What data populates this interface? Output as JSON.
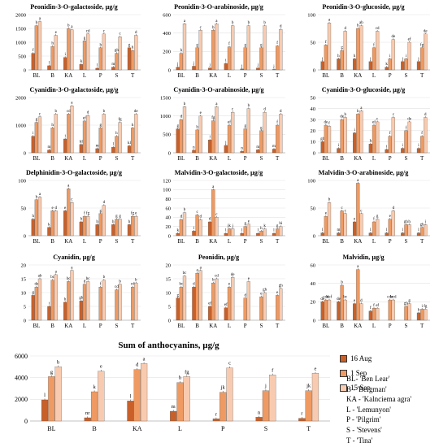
{
  "chart_data": [
    {
      "type": "bar",
      "title": "Peonidin-3-O-galactoside, µg/g",
      "categories": [
        "BL",
        "B",
        "KA",
        "L",
        "P",
        "S",
        "T"
      ],
      "ylim": [
        0,
        2000
      ],
      "yticks": [
        0,
        500,
        1000,
        1500,
        2000
      ],
      "series": [
        {
          "name": "16 Aug",
          "values": [
            600,
            150,
            450,
            200,
            60,
            100,
            800
          ]
        },
        {
          "name": "1 Sep",
          "values": [
            1600,
            850,
            1500,
            1050,
            800,
            600,
            700
          ]
        },
        {
          "name": "15 Sep",
          "values": [
            1750,
            1250,
            1450,
            1300,
            1300,
            1200,
            1250
          ]
        }
      ],
      "labels": [
        [
          "f",
          "l",
          "i",
          "k",
          "l",
          "m",
          "g"
        ],
        [
          "b",
          "h",
          "b",
          "g",
          "h",
          "gh",
          "h"
        ],
        [
          "a",
          "e",
          "a",
          "cd",
          "c",
          "c",
          "d"
        ]
      ]
    },
    {
      "type": "bar",
      "title": "Peonidin-3-O-arabinoside, µg/g",
      "categories": [
        "BL",
        "B",
        "KA",
        "L",
        "P",
        "S",
        "T"
      ],
      "ylim": [
        0,
        600
      ],
      "yticks": [
        0,
        200,
        400,
        600
      ],
      "series": [
        {
          "name": "16 Aug",
          "values": [
            30,
            40,
            20,
            70,
            10,
            20,
            5
          ]
        },
        {
          "name": "1 Sep",
          "values": [
            180,
            240,
            430,
            250,
            240,
            240,
            260
          ]
        },
        {
          "name": "15 Sep",
          "values": [
            500,
            430,
            500,
            480,
            480,
            480,
            440
          ]
        }
      ],
      "labels": [
        [
          "j",
          "j",
          "j",
          "i",
          "j",
          "j",
          "j"
        ],
        [
          "h",
          "g",
          "b",
          "f",
          "g",
          "g",
          "f"
        ],
        [
          "a",
          "c",
          "a",
          "b",
          "b",
          "b",
          "d"
        ]
      ]
    },
    {
      "type": "bar",
      "title": "Peonidin-3-O-glucoside, µg/g",
      "categories": [
        "BL",
        "B",
        "KA",
        "L",
        "P",
        "S",
        "T"
      ],
      "ylim": [
        0,
        100
      ],
      "yticks": [
        0,
        50,
        100
      ],
      "series": [
        {
          "name": "16 Aug",
          "values": [
            15,
            20,
            20,
            15,
            5,
            15,
            15
          ]
        },
        {
          "name": "1 Sep",
          "values": [
            45,
            35,
            75,
            40,
            20,
            20,
            40
          ]
        },
        {
          "name": "15 Sep",
          "values": [
            85,
            70,
            80,
            70,
            55,
            50,
            65
          ]
        }
      ],
      "labels": [
        [
          "j",
          "h",
          "h",
          "j",
          "k",
          "j",
          "j"
        ],
        [
          "f",
          "g",
          "b",
          "f",
          "i",
          "i",
          "fg"
        ],
        [
          "a",
          "d",
          "ab",
          "cd",
          "de",
          "ef",
          "de"
        ]
      ]
    },
    {
      "type": "bar",
      "title": "Cyanidin-3-O-galactoside, µg/g",
      "categories": [
        "BL",
        "B",
        "KA",
        "L",
        "P",
        "S",
        "T"
      ],
      "ylim": [
        0,
        2000
      ],
      "yticks": [
        0,
        1000,
        2000
      ],
      "series": [
        {
          "name": "16 Aug",
          "values": [
            600,
            100,
            500,
            300,
            150,
            200,
            250
          ]
        },
        {
          "name": "1 Sep",
          "values": [
            1100,
            900,
            1400,
            1150,
            900,
            600,
            900
          ]
        },
        {
          "name": "15 Sep",
          "values": [
            1300,
            1400,
            1700,
            1350,
            1400,
            1100,
            1400
          ]
        }
      ],
      "labels": [
        [
          "i",
          "m",
          "i",
          "kl",
          "m",
          "l",
          "kl"
        ],
        [
          "g",
          "h",
          "cd",
          "ef",
          "g",
          "h",
          "h"
        ],
        [
          "c",
          "b",
          "a",
          "d",
          "b",
          "fg",
          "de"
        ]
      ]
    },
    {
      "type": "bar",
      "title": "Cyanidin-3-O-arabinoside, µg/g",
      "categories": [
        "BL",
        "B",
        "KA",
        "L",
        "P",
        "S",
        "T"
      ],
      "ylim": [
        0,
        1500
      ],
      "yticks": [
        0,
        500,
        1000,
        1500
      ],
      "series": [
        {
          "name": "16 Aug",
          "values": [
            650,
            70,
            350,
            200,
            40,
            80,
            100
          ]
        },
        {
          "name": "1 Sep",
          "values": [
            900,
            620,
            870,
            750,
            650,
            600,
            750
          ]
        },
        {
          "name": "15 Sep",
          "values": [
            1250,
            1000,
            1250,
            1100,
            1200,
            1100,
            1050
          ]
        }
      ],
      "labels": [
        [
          "g",
          "n",
          "i",
          "j",
          "n",
          "m",
          "m"
        ],
        [
          "d",
          "h",
          "fg",
          "ef",
          "g",
          "g",
          "f"
        ],
        [
          "b",
          "e",
          "a",
          "c",
          "b",
          "d",
          "d"
        ]
      ]
    },
    {
      "type": "bar",
      "title": "Cyanidin-3-O-glucoside, µg/g",
      "categories": [
        "BL",
        "B",
        "KA",
        "L",
        "P",
        "S",
        "T"
      ],
      "ylim": [
        0,
        50
      ],
      "yticks": [
        0,
        10,
        20,
        30,
        40,
        50
      ],
      "series": [
        {
          "name": "16 Aug",
          "values": [
            10,
            4,
            18,
            8,
            3,
            4,
            4
          ]
        },
        {
          "name": "1 Sep",
          "values": [
            25,
            30,
            35,
            25,
            15,
            20,
            15
          ]
        },
        {
          "name": "15 Sep",
          "values": [
            24,
            32,
            38,
            28,
            32,
            28,
            32
          ]
        }
      ],
      "labels": [
        [
          "gh",
          "i",
          "i",
          "h",
          "i",
          "i",
          "i"
        ],
        [
          "de",
          "de",
          "b",
          "ef",
          "f",
          "f",
          "f"
        ],
        [
          "f",
          "b",
          "a",
          "c",
          "c",
          "de",
          "d"
        ]
      ]
    },
    {
      "type": "bar",
      "title": "Delphinidin-3-O-galactoside, µg/g",
      "categories": [
        "BL",
        "B",
        "KA",
        "L",
        "P",
        "S",
        "T"
      ],
      "ylim": [
        0,
        100
      ],
      "yticks": [
        0,
        50,
        100
      ],
      "series": [
        {
          "name": "16 Aug",
          "values": [
            30,
            15,
            45,
            25,
            20,
            20,
            20
          ]
        },
        {
          "name": "1 Sep",
          "values": [
            65,
            45,
            85,
            35,
            40,
            30,
            35
          ]
        },
        {
          "name": "15 Sep",
          "values": [
            70,
            45,
            60,
            35,
            55,
            30,
            35
          ]
        }
      ],
      "labels": [
        [
          "h",
          "k",
          "e",
          "h",
          "h",
          "h",
          "h"
        ],
        [
          "b",
          "e",
          "a",
          "f",
          "g",
          "g",
          "fg"
        ],
        [
          "a",
          "d",
          "c",
          "fg",
          "d",
          "g",
          "e"
        ]
      ]
    },
    {
      "type": "bar",
      "title": "Malvidin-3-O-galactoside, µg/g",
      "categories": [
        "BL",
        "B",
        "KA",
        "L",
        "P",
        "S",
        "T"
      ],
      "ylim": [
        0,
        120
      ],
      "yticks": [
        0,
        20,
        40,
        60,
        80,
        100,
        120
      ],
      "series": [
        {
          "name": "16 Aug",
          "values": [
            5,
            10,
            30,
            5,
            5,
            5,
            5
          ]
        },
        {
          "name": "1 Sep",
          "values": [
            35,
            45,
            100,
            15,
            20,
            10,
            15
          ]
        },
        {
          "name": "15 Sep",
          "values": [
            50,
            35,
            40,
            15,
            25,
            15,
            20
          ]
        }
      ],
      "labels": [
        [
          "k",
          "l",
          "d",
          "l",
          "l",
          "l",
          "l"
        ],
        [
          "d",
          "c",
          "a",
          "jk",
          "g",
          "h",
          "g"
        ],
        [
          "b",
          "d",
          "c",
          "j",
          "e",
          "k",
          "hi"
        ]
      ]
    },
    {
      "type": "bar",
      "title": "Malvidin-3-O-arabinoside, µg/g",
      "categories": [
        "BL",
        "B",
        "KA",
        "L",
        "P",
        "S",
        "T"
      ],
      "ylim": [
        0,
        100
      ],
      "yticks": [
        0,
        50,
        100
      ],
      "series": [
        {
          "name": "16 Aug",
          "values": [
            5,
            5,
            25,
            5,
            5,
            5,
            5
          ]
        },
        {
          "name": "1 Sep",
          "values": [
            35,
            45,
            95,
            25,
            30,
            20,
            15
          ]
        },
        {
          "name": "15 Sep",
          "values": [
            60,
            40,
            40,
            30,
            45,
            20,
            20
          ]
        }
      ],
      "labels": [
        [
          "l",
          "m",
          "e",
          "l",
          "l",
          "l",
          "l"
        ],
        [
          "e",
          "c",
          "a",
          "f",
          "e",
          "gh",
          "gh"
        ],
        [
          "b",
          "c",
          "c",
          "g",
          "d",
          "h",
          "i"
        ]
      ]
    },
    {
      "type": "bar",
      "title": "Cyanidin, µg/g",
      "categories": [
        "BL",
        "B",
        "KA",
        "L",
        "P",
        "S",
        "T"
      ],
      "ylim": [
        0,
        20
      ],
      "yticks": [
        0,
        5,
        10,
        15,
        20
      ],
      "series": [
        {
          "name": "16 Aug",
          "values": [
            9,
            5,
            6.5,
            7,
            0,
            0,
            0
          ]
        },
        {
          "name": "1 Sep",
          "values": [
            12,
            14.5,
            14,
            13,
            12,
            11,
            12
          ]
        },
        {
          "name": "15 Sep",
          "values": [
            15,
            16.5,
            18,
            14,
            14.5,
            13,
            13.5
          ]
        }
      ],
      "labels": [
        [
          "g",
          "i",
          "h",
          "gh",
          "",
          "",
          ""
        ],
        [
          "de",
          "bc",
          "bc",
          "d",
          "f",
          "cd",
          "cd"
        ],
        [
          "ab",
          "a",
          "a",
          "bc",
          "b",
          "b",
          "b"
        ]
      ]
    },
    {
      "type": "bar",
      "title": "Peonidin, µg/g",
      "categories": [
        "BL",
        "B",
        "KA",
        "L",
        "P",
        "S",
        "T"
      ],
      "ylim": [
        0,
        20
      ],
      "yticks": [
        0,
        5,
        10,
        15,
        20
      ],
      "series": [
        {
          "name": "16 Aug",
          "values": [
            8,
            12,
            5,
            4.5,
            0,
            0,
            0
          ]
        },
        {
          "name": "1 Sep",
          "values": [
            12,
            17,
            13.5,
            12,
            8,
            8.5,
            9
          ]
        },
        {
          "name": "15 Sep",
          "values": [
            16,
            18,
            15,
            15.5,
            14,
            10,
            11.5
          ]
        }
      ],
      "labels": [
        [
          "g",
          "d",
          "ef",
          "ef",
          "",
          "",
          ""
        ],
        [
          "bc",
          "a",
          "b",
          "e",
          "d",
          "e",
          "e"
        ],
        [
          "bc",
          "a",
          "cd",
          "de",
          "e",
          "gh",
          "gh"
        ]
      ]
    },
    {
      "type": "bar",
      "title": "Malvidin, µg/g",
      "categories": [
        "BL",
        "B",
        "KA",
        "L",
        "P",
        "S",
        "T"
      ],
      "ylim": [
        0,
        60
      ],
      "yticks": [
        0,
        20,
        40,
        60
      ],
      "series": [
        {
          "name": "16 Aug",
          "values": [
            20,
            20,
            18,
            10,
            0,
            0,
            8
          ]
        },
        {
          "name": "1 Sep",
          "values": [
            22,
            38,
            55,
            13,
            22,
            15,
            12
          ]
        },
        {
          "name": "15 Sep",
          "values": [
            22,
            22,
            18,
            13,
            22,
            18,
            12
          ]
        }
      ],
      "labels": [
        [
          "de",
          "de",
          "e",
          "f",
          "",
          "",
          "h"
        ],
        [
          "cde",
          "b",
          "a",
          "f",
          "cde",
          "gh",
          "i"
        ],
        [
          "def",
          "bc",
          "d",
          "ef",
          "bcd",
          "g",
          "fg"
        ]
      ]
    },
    {
      "type": "bar",
      "title": "Sum of anthocyanins, µg/g",
      "categories": [
        "BL",
        "B",
        "KA",
        "L",
        "P",
        "S",
        "T"
      ],
      "ylim": [
        0,
        6000
      ],
      "yticks": [
        0,
        2000,
        4000,
        6000
      ],
      "series": [
        {
          "name": "16 Aug",
          "values": [
            1950,
            300,
            1850,
            900,
            200,
            350,
            250
          ]
        },
        {
          "name": "1 Sep",
          "values": [
            4100,
            2700,
            4750,
            3550,
            2650,
            2800,
            2800
          ]
        },
        {
          "name": "15 Sep",
          "values": [
            5000,
            4600,
            5300,
            4100,
            4900,
            4250,
            4400
          ]
        }
      ],
      "labels": [
        [
          "l",
          "nr",
          "l",
          "m",
          "r",
          "n",
          "r"
        ],
        [
          "g",
          "k",
          "d",
          "h",
          "jk",
          "j",
          "jk"
        ],
        [
          "b",
          "e",
          "a",
          "fg",
          "c",
          "f",
          "e"
        ]
      ]
    }
  ],
  "legend": [
    {
      "label": "16 Aug",
      "color": "#c8602a"
    },
    {
      "label": "1 Sep",
      "color": "#ef9a62"
    },
    {
      "label": "15 Sep",
      "color": "#f8cbb0"
    }
  ],
  "key": [
    "BL- 'Ben Lear'",
    "B - 'Bergman'",
    "KA - 'Kalnciema agra'",
    "L - 'Lemunyon'",
    "P - 'Pilgrim'",
    "S - 'Stevens'",
    "T - 'Tina'"
  ]
}
